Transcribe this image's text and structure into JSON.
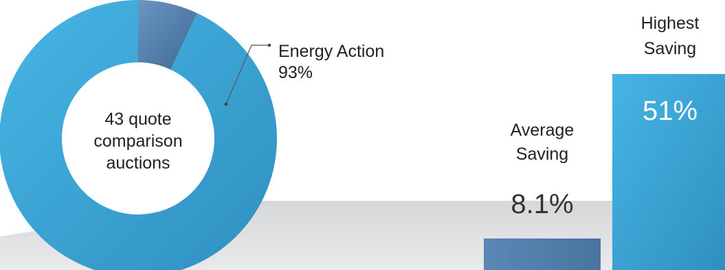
{
  "chart_data": [
    {
      "type": "pie",
      "title": "",
      "center_label": [
        "43 quote",
        "comparison",
        "auctions"
      ],
      "slices": [
        {
          "label": "Energy Action",
          "value": 93,
          "value_label": "93%",
          "color": "#3aa3d6"
        },
        {
          "label": "",
          "value": 7,
          "color": "#4f7fae"
        }
      ]
    },
    {
      "type": "bar",
      "title": "",
      "categories": [
        {
          "label_lines": [
            "Average",
            "Saving"
          ],
          "value": 8.1,
          "value_label": "8.1%",
          "color": "#4f7fae"
        },
        {
          "label_lines": [
            "Highest",
            "Saving"
          ],
          "value": 51,
          "value_label": "51%",
          "color": "#3aa3d6"
        }
      ],
      "values": [
        8.1,
        51
      ]
    }
  ]
}
